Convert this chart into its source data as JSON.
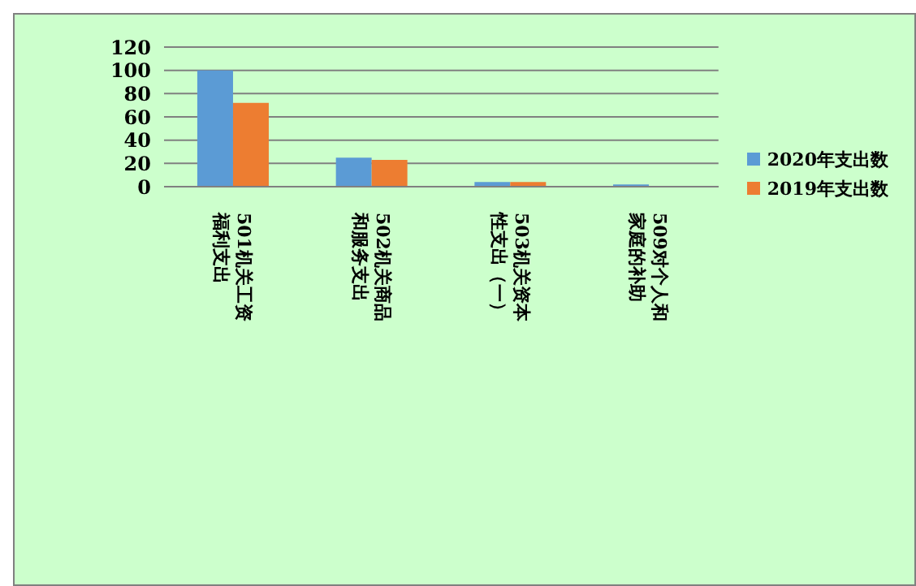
{
  "chart_data": {
    "type": "bar",
    "categories": [
      "501机关工资福利支出",
      "502机关商品和服务支出",
      "503机关资本性支出（一）",
      "509对个人和家庭的补助"
    ],
    "series": [
      {
        "name": "2020年支出数",
        "color": "#5b9bd5",
        "values": [
          100,
          25,
          4,
          2
        ]
      },
      {
        "name": "2019年支出数",
        "color": "#ed7d31",
        "values": [
          72,
          23,
          4,
          null
        ]
      }
    ],
    "ylim": [
      0,
      120
    ],
    "yticks": [
      0,
      20,
      40,
      60,
      80,
      100,
      120
    ],
    "grid": "y",
    "legend": "right"
  }
}
